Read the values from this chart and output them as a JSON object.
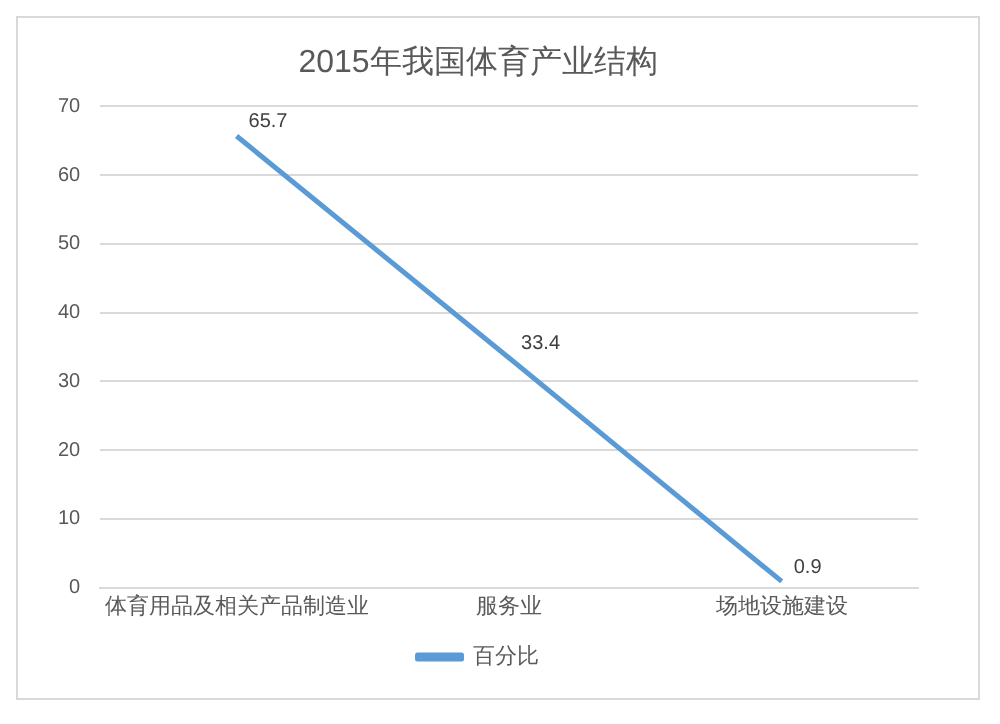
{
  "chart_data": {
    "type": "line",
    "title": "2015年我国体育产业结构",
    "categories": [
      "体育用品及相关产品制造业",
      "服务业",
      "场地设施建设"
    ],
    "series": [
      {
        "name": "百分比",
        "color": "#5b9bd5",
        "values": [
          65.7,
          33.4,
          0.9
        ]
      }
    ],
    "ylim": [
      0,
      70
    ],
    "yticks": [
      0,
      10,
      20,
      30,
      40,
      50,
      60,
      70
    ],
    "grid": "y",
    "legend": "bottom",
    "data_labels": true,
    "marker": "none"
  }
}
